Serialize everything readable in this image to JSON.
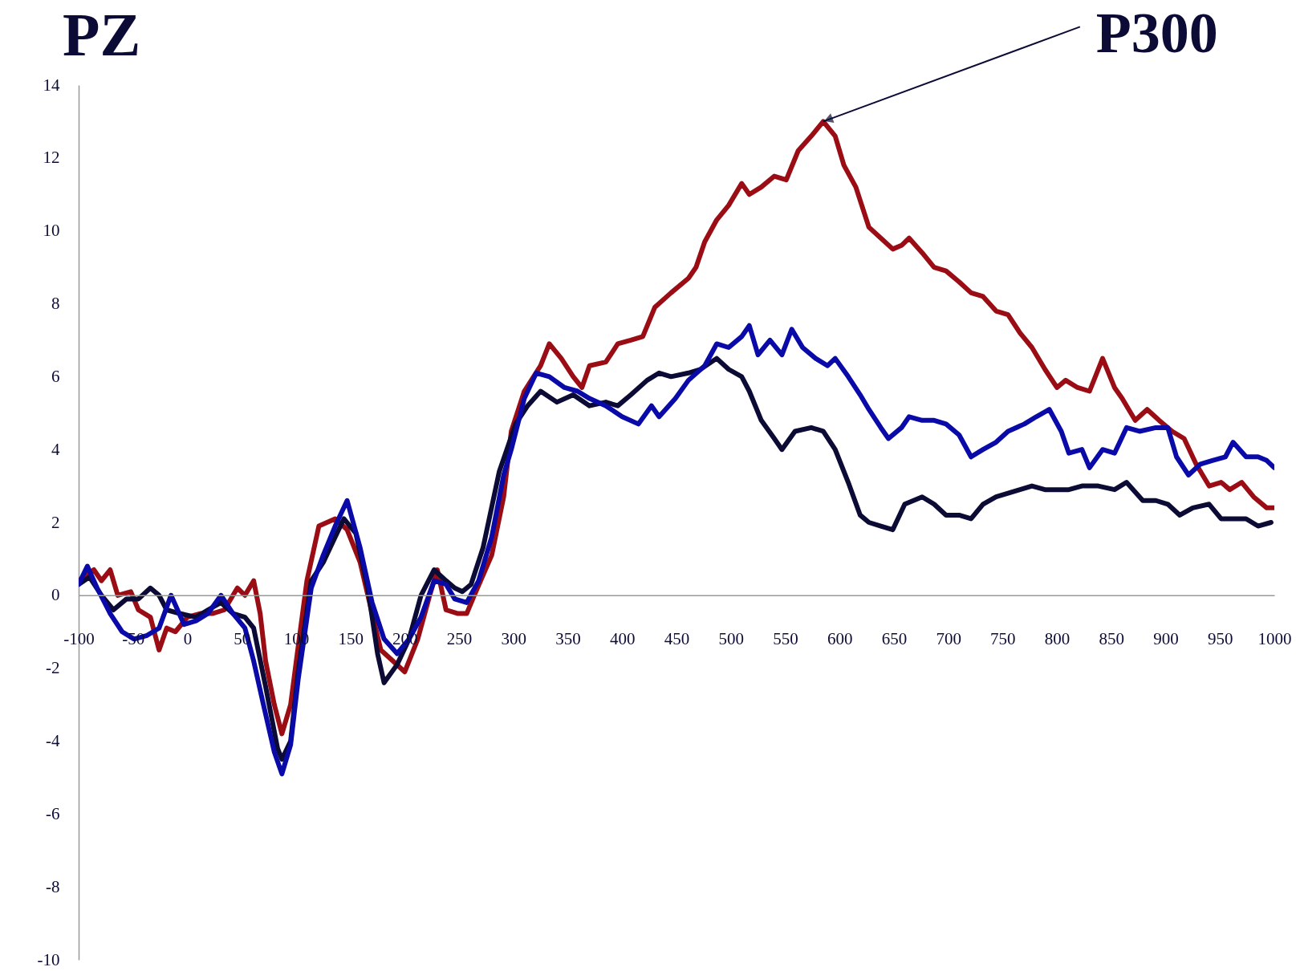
{
  "chart_data": {
    "type": "line",
    "title": "PZ",
    "xlim": [
      -100,
      1000
    ],
    "ylim": [
      -10,
      14
    ],
    "xticks": [
      -100,
      -50,
      0,
      50,
      100,
      150,
      200,
      250,
      300,
      350,
      400,
      450,
      500,
      550,
      600,
      650,
      700,
      750,
      800,
      850,
      900,
      950,
      1000
    ],
    "yticks": [
      -10,
      -8,
      -6,
      -4,
      -2,
      0,
      2,
      4,
      6,
      8,
      10,
      12,
      14
    ],
    "grid": false,
    "legend": false,
    "annotations": [
      {
        "text": "P300",
        "x": 585,
        "y": 13
      }
    ],
    "series": [
      {
        "color": "#9b0d14",
        "x": [
          -100,
          -86,
          -79,
          -71,
          -64,
          -52,
          -45,
          -34,
          -26,
          -19,
          -11,
          0,
          12,
          23,
          34,
          46,
          53,
          61,
          67,
          72,
          80,
          87,
          95,
          102,
          110,
          121,
          136,
          147,
          159,
          170,
          178,
          189,
          200,
          212,
          223,
          230,
          238,
          249,
          257,
          264,
          280,
          291,
          298,
          310,
          325,
          333,
          344,
          355,
          363,
          370,
          385,
          396,
          408,
          419,
          430,
          445,
          461,
          468,
          476,
          487,
          498,
          510,
          517,
          528,
          540,
          551,
          562,
          574,
          585,
          596,
          604,
          615,
          627,
          638,
          649,
          657,
          664,
          676,
          687,
          698,
          710,
          721,
          732,
          744,
          755,
          766,
          777,
          789,
          800,
          808,
          819,
          830,
          842,
          853,
          860,
          872,
          883,
          894,
          906,
          917,
          928,
          940,
          951,
          959,
          970,
          981,
          993,
          1000
        ],
        "values": [
          0.4,
          0.7,
          0.4,
          0.7,
          0.0,
          0.1,
          -0.4,
          -0.6,
          -1.5,
          -0.9,
          -1.0,
          -0.6,
          -0.5,
          -0.5,
          -0.4,
          0.2,
          0.0,
          0.4,
          -0.5,
          -1.8,
          -3.0,
          -3.8,
          -3.0,
          -1.4,
          0.4,
          1.9,
          2.1,
          1.8,
          0.9,
          -0.5,
          -1.5,
          -1.8,
          -2.1,
          -1.2,
          0.0,
          0.7,
          -0.4,
          -0.5,
          -0.5,
          0.0,
          1.1,
          2.7,
          4.5,
          5.6,
          6.3,
          6.9,
          6.5,
          6.0,
          5.7,
          6.3,
          6.4,
          6.9,
          7.0,
          7.1,
          7.9,
          8.3,
          8.7,
          9.0,
          9.7,
          10.3,
          10.7,
          11.3,
          11.0,
          11.2,
          11.5,
          11.4,
          12.2,
          12.6,
          13.0,
          12.6,
          11.8,
          11.2,
          10.1,
          9.8,
          9.5,
          9.6,
          9.8,
          9.4,
          9.0,
          8.9,
          8.6,
          8.3,
          8.2,
          7.8,
          7.7,
          7.2,
          6.8,
          6.2,
          5.7,
          5.9,
          5.7,
          5.6,
          6.5,
          5.7,
          5.4,
          4.8,
          5.1,
          4.8,
          4.5,
          4.3,
          3.6,
          3.0,
          3.1,
          2.9,
          3.1,
          2.7,
          2.4,
          2.4
        ]
      },
      {
        "color": "#0b0b35",
        "x": [
          -100,
          -90,
          -79,
          -68,
          -56,
          -45,
          -34,
          -26,
          -19,
          -7,
          8,
          19,
          31,
          42,
          53,
          61,
          72,
          83,
          87,
          95,
          102,
          114,
          125,
          136,
          144,
          155,
          166,
          175,
          181,
          193,
          204,
          215,
          227,
          238,
          246,
          253,
          261,
          272,
          287,
          302,
          313,
          325,
          340,
          355,
          370,
          385,
          396,
          408,
          423,
          434,
          445,
          461,
          472,
          487,
          498,
          510,
          517,
          528,
          540,
          547,
          559,
          574,
          585,
          596,
          608,
          619,
          627,
          638,
          649,
          660,
          676,
          687,
          698,
          710,
          721,
          732,
          744,
          755,
          766,
          777,
          789,
          800,
          811,
          823,
          838,
          853,
          864,
          879,
          891,
          902,
          913,
          925,
          940,
          951,
          962,
          974,
          985,
          997
        ],
        "values": [
          0.3,
          0.5,
          0.0,
          -0.4,
          -0.1,
          -0.1,
          0.2,
          0.0,
          -0.4,
          -0.5,
          -0.6,
          -0.4,
          -0.2,
          -0.5,
          -0.6,
          -0.9,
          -2.5,
          -4.2,
          -4.5,
          -4.0,
          -2.1,
          0.4,
          0.9,
          1.6,
          2.1,
          1.7,
          0.2,
          -1.6,
          -2.4,
          -1.9,
          -1.2,
          0.0,
          0.7,
          0.4,
          0.2,
          0.1,
          0.3,
          1.3,
          3.4,
          4.7,
          5.2,
          5.6,
          5.3,
          5.5,
          5.2,
          5.3,
          5.2,
          5.5,
          5.9,
          6.1,
          6.0,
          6.1,
          6.2,
          6.5,
          6.2,
          6.0,
          5.6,
          4.8,
          4.3,
          4.0,
          4.5,
          4.6,
          4.5,
          4.0,
          3.1,
          2.2,
          2.0,
          1.9,
          1.8,
          2.5,
          2.7,
          2.5,
          2.2,
          2.2,
          2.1,
          2.5,
          2.7,
          2.8,
          2.9,
          3.0,
          2.9,
          2.9,
          2.9,
          3.0,
          3.0,
          2.9,
          3.1,
          2.6,
          2.6,
          2.5,
          2.2,
          2.4,
          2.5,
          2.1,
          2.1,
          2.1,
          1.9,
          2.0
        ]
      },
      {
        "color": "#0a0aa8",
        "x": [
          -100,
          -92,
          -83,
          -71,
          -60,
          -49,
          -37,
          -26,
          -15,
          -3,
          8,
          19,
          31,
          42,
          53,
          61,
          70,
          80,
          87,
          95,
          102,
          114,
          125,
          136,
          147,
          159,
          170,
          181,
          193,
          204,
          215,
          227,
          238,
          246,
          257,
          268,
          280,
          291,
          298,
          310,
          321,
          333,
          347,
          359,
          370,
          385,
          400,
          415,
          427,
          434,
          449,
          461,
          476,
          487,
          498,
          510,
          517,
          525,
          536,
          547,
          556,
          566,
          578,
          589,
          596,
          608,
          619,
          627,
          638,
          645,
          657,
          664,
          676,
          687,
          698,
          710,
          721,
          732,
          744,
          755,
          770,
          781,
          793,
          804,
          811,
          823,
          830,
          842,
          853,
          864,
          876,
          891,
          902,
          910,
          921,
          932,
          943,
          955,
          962,
          974,
          985,
          993,
          1000
        ],
        "values": [
          0.3,
          0.8,
          0.2,
          -0.5,
          -1.0,
          -1.2,
          -1.1,
          -0.9,
          0.0,
          -0.8,
          -0.7,
          -0.5,
          0.0,
          -0.5,
          -0.9,
          -1.8,
          -3.0,
          -4.3,
          -4.9,
          -4.1,
          -2.3,
          0.2,
          1.1,
          1.9,
          2.6,
          1.3,
          -0.2,
          -1.2,
          -1.6,
          -1.2,
          -0.6,
          0.4,
          0.3,
          -0.1,
          -0.2,
          0.4,
          1.6,
          3.3,
          4.0,
          5.4,
          6.1,
          6.0,
          5.7,
          5.6,
          5.4,
          5.2,
          4.9,
          4.7,
          5.2,
          4.9,
          5.4,
          5.9,
          6.3,
          6.9,
          6.8,
          7.1,
          7.4,
          6.6,
          7.0,
          6.6,
          7.3,
          6.8,
          6.5,
          6.3,
          6.5,
          6.0,
          5.5,
          5.1,
          4.6,
          4.3,
          4.6,
          4.9,
          4.8,
          4.8,
          4.7,
          4.4,
          3.8,
          4.0,
          4.2,
          4.5,
          4.7,
          4.9,
          5.1,
          4.5,
          3.9,
          4.0,
          3.5,
          4.0,
          3.9,
          4.6,
          4.5,
          4.6,
          4.6,
          3.8,
          3.3,
          3.6,
          3.7,
          3.8,
          4.2,
          3.8,
          3.8,
          3.7,
          3.5
        ]
      }
    ]
  }
}
